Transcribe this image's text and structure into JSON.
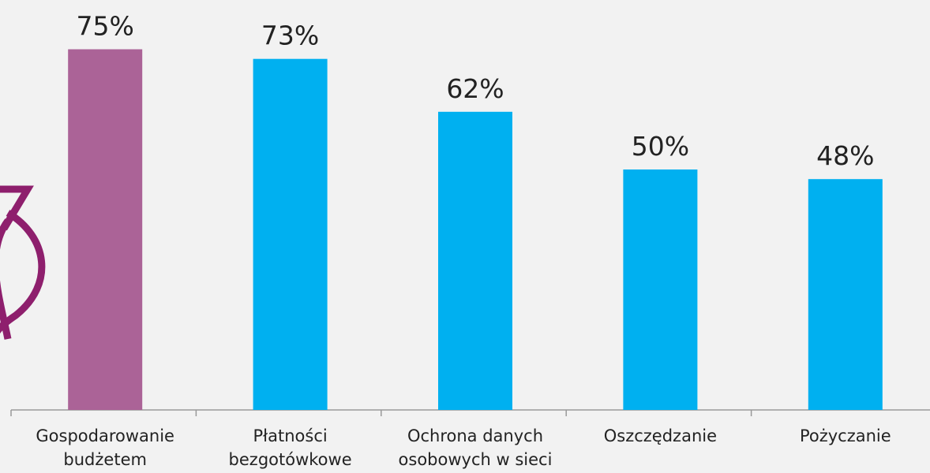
{
  "chart_data": {
    "type": "bar",
    "categories": [
      "Gospodarowanie budżetem domowym",
      "Płatności bezgotówkowe",
      "Ochrona danych osobowych w sieci",
      "Oszczędzanie",
      "Pożyczanie"
    ],
    "values": [
      75,
      73,
      62,
      50,
      48
    ],
    "value_labels": [
      "75%",
      "73%",
      "62%",
      "50%",
      "48%"
    ],
    "colors": [
      "#ab6397",
      "#00b0f0",
      "#00b0f0",
      "#00b0f0",
      "#00b0f0"
    ]
  }
}
